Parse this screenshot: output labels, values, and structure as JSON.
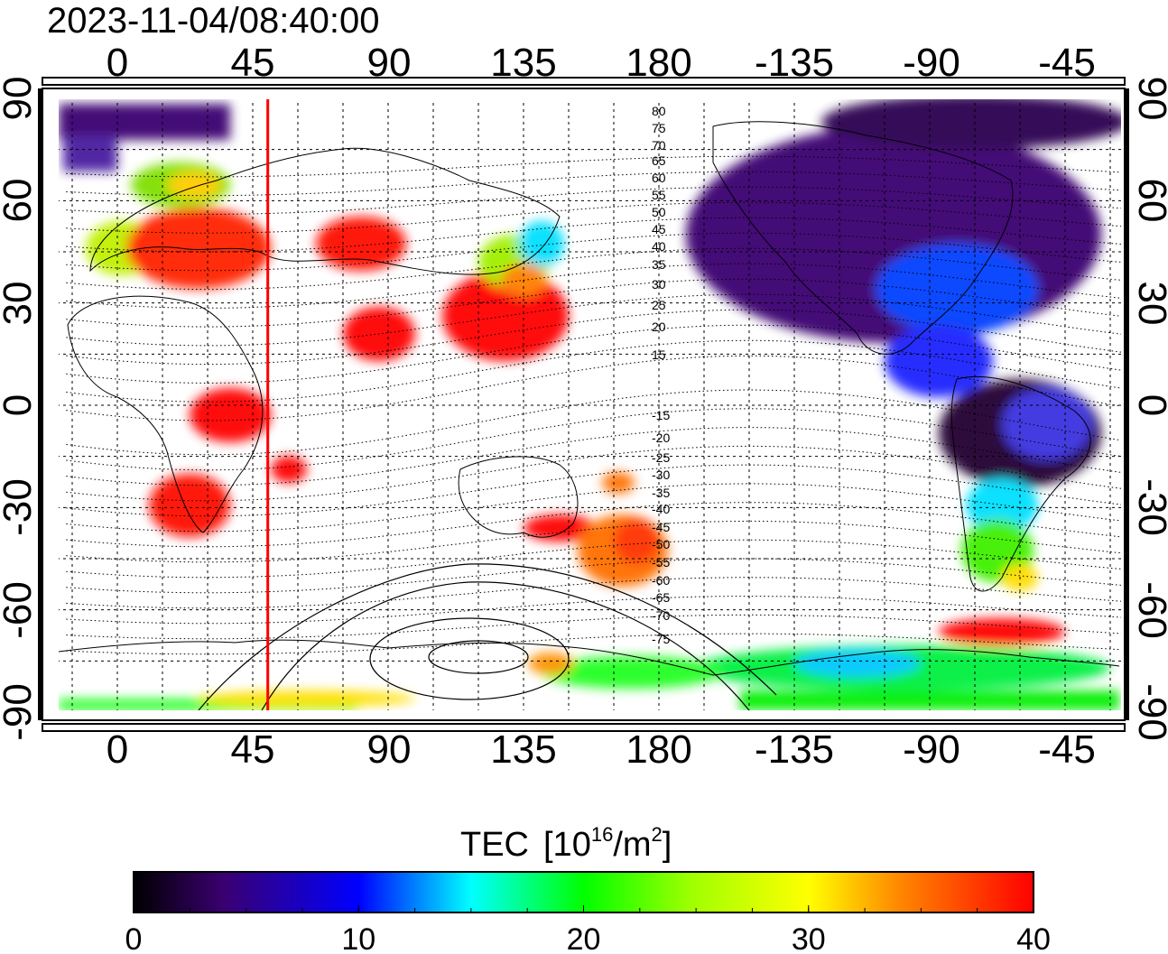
{
  "timestamp": "2023-11-04/08:40:00",
  "x_ticks": [
    "0",
    "45",
    "90",
    "135",
    "180",
    "-135",
    "-90",
    "-45"
  ],
  "y_ticks": [
    "90",
    "60",
    "30",
    "0",
    "-30",
    "-60",
    "-90"
  ],
  "colorbar": {
    "label_main": "TEC",
    "label_open": "[10",
    "label_exp": "16",
    "label_mid": "/m",
    "label_sq": "2",
    "label_close": "]",
    "ticks": [
      "0",
      "10",
      "20",
      "30",
      "40"
    ],
    "range": [
      0,
      40
    ]
  },
  "meridian_marker": {
    "longitude": 50,
    "color": "#ff0000"
  },
  "contour_labels": [
    "80",
    "75",
    "70",
    "65",
    "60",
    "55",
    "50",
    "45",
    "40",
    "35",
    "30",
    "25",
    "20",
    "15",
    "-15",
    "-20",
    "-25",
    "-30",
    "-35",
    "-40",
    "-45",
    "-50",
    "-55",
    "-60",
    "-65",
    "-70",
    "-75"
  ],
  "colors": {
    "low": "#000000",
    "mid_low": "#0000ff",
    "mid": "#00ff00",
    "mid_high": "#ffff00",
    "high": "#ff0000"
  },
  "chart_data": {
    "type": "heatmap",
    "title": "2023-11-04/08:40:00",
    "xlabel": "",
    "ylabel": "",
    "xlim": [
      -17,
      337
    ],
    "ylim": [
      -92,
      92
    ],
    "colorbar_label": "TEC [10^16/m^2]",
    "regions": [
      {
        "lon": [
          -2,
          35
        ],
        "lat": [
          70,
          90
        ],
        "tec": 8
      },
      {
        "lon": [
          5,
          40
        ],
        "lat": [
          55,
          72
        ],
        "tec": 28
      },
      {
        "lon": [
          -10,
          55
        ],
        "lat": [
          33,
          55
        ],
        "tec": 40
      },
      {
        "lon": [
          60,
          120
        ],
        "lat": [
          20,
          60
        ],
        "tec": 40
      },
      {
        "lon": [
          115,
          160
        ],
        "lat": [
          20,
          50
        ],
        "tec": 40
      },
      {
        "lon": [
          120,
          150
        ],
        "lat": [
          38,
          55
        ],
        "tec": 22
      },
      {
        "lon": [
          15,
          35
        ],
        "lat": [
          -40,
          -25
        ],
        "tec": 40
      },
      {
        "lon": [
          160,
          185
        ],
        "lat": [
          -55,
          -38
        ],
        "tec": 35
      },
      {
        "lon": [
          210,
          340
        ],
        "lat": [
          40,
          85
        ],
        "tec": 8
      },
      {
        "lon": [
          220,
          290
        ],
        "lat": [
          15,
          45
        ],
        "tec": 12
      },
      {
        "lon": [
          280,
          330
        ],
        "lat": [
          -30,
          5
        ],
        "tec": 2
      },
      {
        "lon": [
          290,
          320
        ],
        "lat": [
          -55,
          -30
        ],
        "tec": 22
      },
      {
        "lon": [
          150,
          320
        ],
        "lat": [
          -90,
          -75
        ],
        "tec": 22
      },
      {
        "lon": [
          290,
          335
        ],
        "lat": [
          -80,
          -70
        ],
        "tec": 38
      },
      {
        "lon": [
          20,
          80
        ],
        "lat": [
          -92,
          -86
        ],
        "tec": 30
      }
    ]
  }
}
